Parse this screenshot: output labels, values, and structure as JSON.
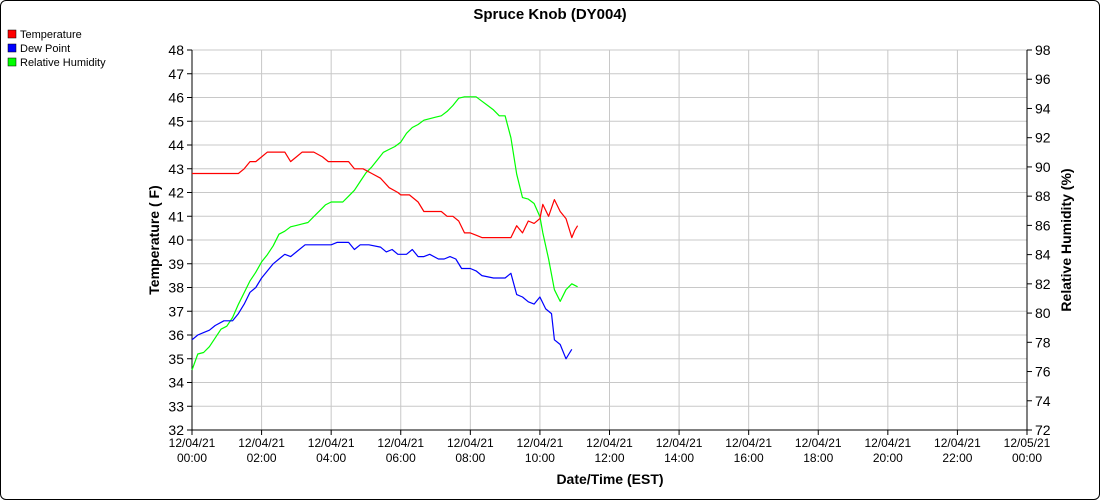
{
  "chart_data": {
    "type": "line",
    "title": "Spruce Knob (DY004)",
    "xlabel": "Date/Time (EST)",
    "ylabel": "Temperature ( F)",
    "y2label": "Relative Humidity (%)",
    "xlim_hours": [
      0,
      24
    ],
    "ylim": [
      32,
      48
    ],
    "y2lim": [
      72,
      98
    ],
    "yticks": [
      "32",
      "33",
      "34",
      "35",
      "36",
      "37",
      "38",
      "39",
      "40",
      "41",
      "42",
      "43",
      "44",
      "45",
      "46",
      "47",
      "48"
    ],
    "y2ticks": [
      "72",
      "74",
      "76",
      "78",
      "80",
      "82",
      "84",
      "86",
      "88",
      "90",
      "92",
      "94",
      "96",
      "98"
    ],
    "xticks": [
      {
        "date": "12/04/21",
        "time": "00:00"
      },
      {
        "date": "12/04/21",
        "time": "02:00"
      },
      {
        "date": "12/04/21",
        "time": "04:00"
      },
      {
        "date": "12/04/21",
        "time": "06:00"
      },
      {
        "date": "12/04/21",
        "time": "08:00"
      },
      {
        "date": "12/04/21",
        "time": "10:00"
      },
      {
        "date": "12/04/21",
        "time": "12:00"
      },
      {
        "date": "12/04/21",
        "time": "14:00"
      },
      {
        "date": "12/04/21",
        "time": "16:00"
      },
      {
        "date": "12/04/21",
        "time": "18:00"
      },
      {
        "date": "12/04/21",
        "time": "20:00"
      },
      {
        "date": "12/04/21",
        "time": "22:00"
      },
      {
        "date": "12/05/21",
        "time": "00:00"
      }
    ],
    "grid": true,
    "legend_position": "top-left",
    "series": [
      {
        "name": "Temperature",
        "color": "#ff0000",
        "axis": "left",
        "points": [
          [
            "00:00",
            42.8
          ],
          [
            "01:00",
            42.8
          ],
          [
            "01:20",
            42.8
          ],
          [
            "01:30",
            43.0
          ],
          [
            "01:40",
            43.3
          ],
          [
            "01:50",
            43.3
          ],
          [
            "02:00",
            43.5
          ],
          [
            "02:10",
            43.7
          ],
          [
            "02:20",
            43.7
          ],
          [
            "02:40",
            43.7
          ],
          [
            "02:50",
            43.3
          ],
          [
            "03:00",
            43.5
          ],
          [
            "03:10",
            43.7
          ],
          [
            "03:30",
            43.7
          ],
          [
            "03:45",
            43.5
          ],
          [
            "03:55",
            43.3
          ],
          [
            "04:10",
            43.3
          ],
          [
            "04:30",
            43.3
          ],
          [
            "04:40",
            43.0
          ],
          [
            "04:55",
            43.0
          ],
          [
            "05:10",
            42.8
          ],
          [
            "05:25",
            42.6
          ],
          [
            "05:40",
            42.2
          ],
          [
            "05:55",
            42.0
          ],
          [
            "06:00",
            41.9
          ],
          [
            "06:15",
            41.9
          ],
          [
            "06:30",
            41.6
          ],
          [
            "06:40",
            41.2
          ],
          [
            "07:00",
            41.2
          ],
          [
            "07:10",
            41.2
          ],
          [
            "07:20",
            41.0
          ],
          [
            "07:30",
            41.0
          ],
          [
            "07:40",
            40.8
          ],
          [
            "07:50",
            40.3
          ],
          [
            "08:00",
            40.3
          ],
          [
            "08:10",
            40.2
          ],
          [
            "08:20",
            40.1
          ],
          [
            "08:40",
            40.1
          ],
          [
            "09:00",
            40.1
          ],
          [
            "09:10",
            40.1
          ],
          [
            "09:20",
            40.6
          ],
          [
            "09:30",
            40.3
          ],
          [
            "09:40",
            40.8
          ],
          [
            "09:50",
            40.7
          ],
          [
            "10:00",
            40.9
          ],
          [
            "10:05",
            41.5
          ],
          [
            "10:15",
            41.0
          ],
          [
            "10:25",
            41.7
          ],
          [
            "10:35",
            41.2
          ],
          [
            "10:45",
            40.9
          ],
          [
            "10:55",
            40.1
          ],
          [
            "11:00",
            40.4
          ],
          [
            "11:05",
            40.6
          ]
        ]
      },
      {
        "name": "Dew Point",
        "color": "#0000ff",
        "axis": "left",
        "points": [
          [
            "00:00",
            35.8
          ],
          [
            "00:10",
            36.0
          ],
          [
            "00:20",
            36.1
          ],
          [
            "00:30",
            36.2
          ],
          [
            "00:40",
            36.4
          ],
          [
            "00:55",
            36.6
          ],
          [
            "01:10",
            36.6
          ],
          [
            "01:20",
            36.9
          ],
          [
            "01:30",
            37.3
          ],
          [
            "01:40",
            37.8
          ],
          [
            "01:50",
            38.0
          ],
          [
            "02:00",
            38.4
          ],
          [
            "02:10",
            38.7
          ],
          [
            "02:20",
            39.0
          ],
          [
            "02:30",
            39.2
          ],
          [
            "02:40",
            39.4
          ],
          [
            "02:50",
            39.3
          ],
          [
            "03:00",
            39.5
          ],
          [
            "03:15",
            39.8
          ],
          [
            "03:40",
            39.8
          ],
          [
            "04:00",
            39.8
          ],
          [
            "04:10",
            39.9
          ],
          [
            "04:30",
            39.9
          ],
          [
            "04:40",
            39.6
          ],
          [
            "04:50",
            39.8
          ],
          [
            "05:05",
            39.8
          ],
          [
            "05:25",
            39.7
          ],
          [
            "05:35",
            39.5
          ],
          [
            "05:45",
            39.6
          ],
          [
            "05:55",
            39.4
          ],
          [
            "06:10",
            39.4
          ],
          [
            "06:20",
            39.6
          ],
          [
            "06:30",
            39.3
          ],
          [
            "06:40",
            39.3
          ],
          [
            "06:50",
            39.4
          ],
          [
            "07:05",
            39.2
          ],
          [
            "07:15",
            39.2
          ],
          [
            "07:25",
            39.3
          ],
          [
            "07:35",
            39.2
          ],
          [
            "07:45",
            38.8
          ],
          [
            "08:00",
            38.8
          ],
          [
            "08:10",
            38.7
          ],
          [
            "08:20",
            38.5
          ],
          [
            "08:40",
            38.4
          ],
          [
            "09:00",
            38.4
          ],
          [
            "09:10",
            38.6
          ],
          [
            "09:20",
            37.7
          ],
          [
            "09:30",
            37.6
          ],
          [
            "09:40",
            37.4
          ],
          [
            "09:50",
            37.3
          ],
          [
            "10:00",
            37.6
          ],
          [
            "10:10",
            37.1
          ],
          [
            "10:20",
            36.9
          ],
          [
            "10:25",
            35.8
          ],
          [
            "10:35",
            35.6
          ],
          [
            "10:45",
            35.0
          ],
          [
            "10:50",
            35.2
          ],
          [
            "10:55",
            35.4
          ]
        ]
      },
      {
        "name": "Relative Humidity",
        "color": "#00ff00",
        "axis": "right",
        "points": [
          [
            "00:00",
            76.1
          ],
          [
            "00:10",
            77.2
          ],
          [
            "00:20",
            77.3
          ],
          [
            "00:30",
            77.7
          ],
          [
            "00:40",
            78.3
          ],
          [
            "00:50",
            78.9
          ],
          [
            "01:00",
            79.1
          ],
          [
            "01:10",
            79.7
          ],
          [
            "01:20",
            80.6
          ],
          [
            "01:30",
            81.4
          ],
          [
            "01:40",
            82.2
          ],
          [
            "01:50",
            82.8
          ],
          [
            "02:00",
            83.5
          ],
          [
            "02:10",
            84.0
          ],
          [
            "02:20",
            84.6
          ],
          [
            "02:30",
            85.4
          ],
          [
            "02:40",
            85.6
          ],
          [
            "02:50",
            85.9
          ],
          [
            "03:00",
            86.0
          ],
          [
            "03:10",
            86.1
          ],
          [
            "03:20",
            86.2
          ],
          [
            "03:30",
            86.6
          ],
          [
            "03:40",
            87.0
          ],
          [
            "03:50",
            87.4
          ],
          [
            "04:00",
            87.6
          ],
          [
            "04:20",
            87.6
          ],
          [
            "04:30",
            88.0
          ],
          [
            "04:40",
            88.4
          ],
          [
            "04:50",
            89.0
          ],
          [
            "05:00",
            89.6
          ],
          [
            "05:10",
            90.0
          ],
          [
            "05:20",
            90.5
          ],
          [
            "05:30",
            91.0
          ],
          [
            "05:40",
            91.2
          ],
          [
            "05:50",
            91.4
          ],
          [
            "06:00",
            91.7
          ],
          [
            "06:10",
            92.3
          ],
          [
            "06:20",
            92.7
          ],
          [
            "06:30",
            92.9
          ],
          [
            "06:40",
            93.2
          ],
          [
            "06:50",
            93.3
          ],
          [
            "07:00",
            93.4
          ],
          [
            "07:10",
            93.5
          ],
          [
            "07:20",
            93.8
          ],
          [
            "07:30",
            94.2
          ],
          [
            "07:40",
            94.7
          ],
          [
            "07:50",
            94.8
          ],
          [
            "08:00",
            94.8
          ],
          [
            "08:10",
            94.8
          ],
          [
            "08:20",
            94.5
          ],
          [
            "08:30",
            94.2
          ],
          [
            "08:40",
            93.9
          ],
          [
            "08:50",
            93.5
          ],
          [
            "09:00",
            93.5
          ],
          [
            "09:10",
            92.0
          ],
          [
            "09:20",
            89.5
          ],
          [
            "09:30",
            87.9
          ],
          [
            "09:40",
            87.8
          ],
          [
            "09:50",
            87.5
          ],
          [
            "10:00",
            86.6
          ],
          [
            "10:05",
            85.5
          ],
          [
            "10:15",
            83.7
          ],
          [
            "10:25",
            81.6
          ],
          [
            "10:35",
            80.8
          ],
          [
            "10:45",
            81.6
          ],
          [
            "10:55",
            82.0
          ],
          [
            "11:00",
            81.9
          ],
          [
            "11:05",
            81.8
          ]
        ]
      }
    ]
  }
}
